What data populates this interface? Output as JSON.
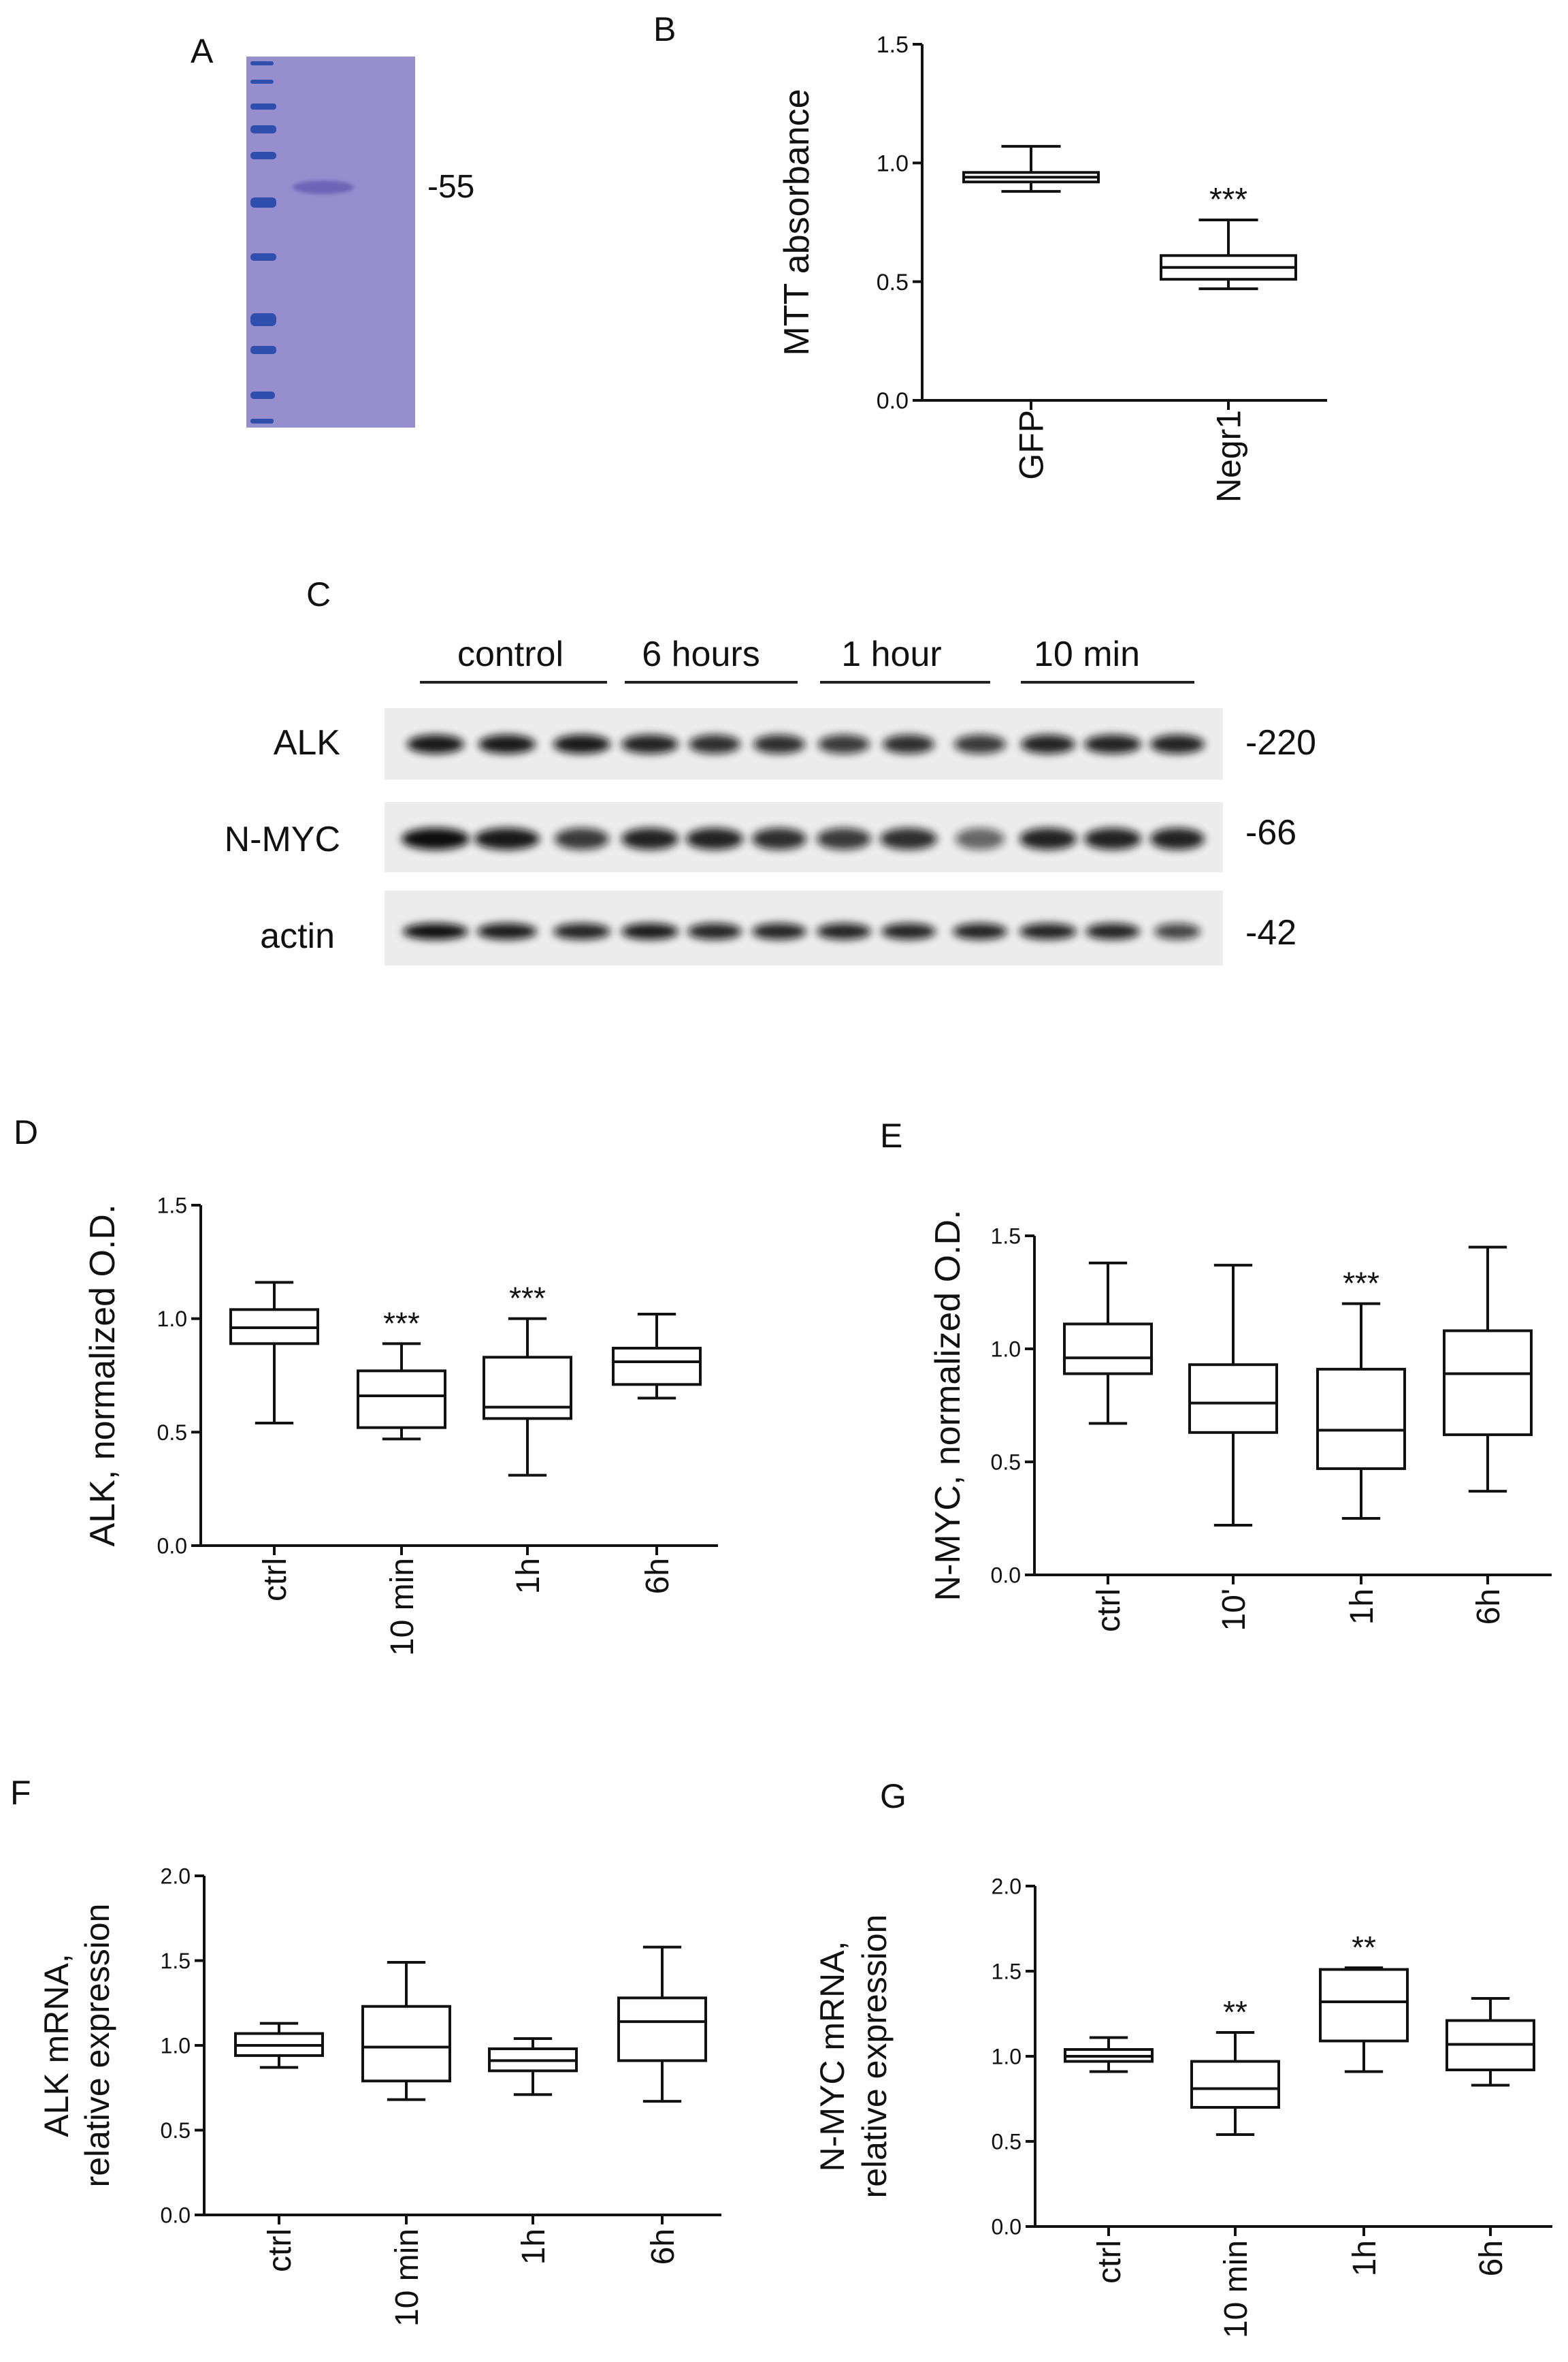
{
  "panel_letters": {
    "A": "A",
    "B": "B",
    "C": "C",
    "D": "D",
    "E": "E",
    "F": "F",
    "G": "G"
  },
  "panelA": {
    "size_label": "-55",
    "colors": {
      "gel": "#8f87c9",
      "marker": "#2e4fae",
      "band": "#6e63b7"
    }
  },
  "panelC": {
    "groups": [
      "control",
      "6 hours",
      "1 hour",
      "10 min"
    ],
    "blots": [
      {
        "name": "ALK",
        "size": "-220"
      },
      {
        "name": "N-MYC",
        "size": "-66"
      },
      {
        "name": "actin",
        "size": "-42"
      }
    ]
  },
  "chart_data": [
    {
      "id": "B",
      "type": "box",
      "ylabel": "MTT absorbance",
      "categories": [
        "GFP",
        "Negr1"
      ],
      "ylim": [
        0,
        1.5
      ],
      "yticks": [
        0.0,
        0.5,
        1.0,
        1.5
      ],
      "ytick_labels": [
        "0.0",
        "0.5",
        "1.0",
        "1.5"
      ],
      "boxes": [
        {
          "min": 0.88,
          "q1": 0.92,
          "median": 0.94,
          "q3": 0.96,
          "max": 1.07,
          "sig": ""
        },
        {
          "min": 0.47,
          "q1": 0.51,
          "median": 0.56,
          "q3": 0.61,
          "max": 0.76,
          "sig": "***"
        }
      ]
    },
    {
      "id": "D",
      "type": "box",
      "ylabel": "ALK, normalized O.D.",
      "categories": [
        "ctrl",
        "10 min",
        "1h",
        "6h"
      ],
      "ylim": [
        0,
        1.5
      ],
      "yticks": [
        0.0,
        0.5,
        1.0,
        1.5
      ],
      "ytick_labels": [
        "0.0",
        "0.5",
        "1.0",
        "1.5"
      ],
      "boxes": [
        {
          "min": 0.54,
          "q1": 0.89,
          "median": 0.96,
          "q3": 1.04,
          "max": 1.16,
          "sig": ""
        },
        {
          "min": 0.47,
          "q1": 0.52,
          "median": 0.66,
          "q3": 0.77,
          "max": 0.89,
          "sig": "***"
        },
        {
          "min": 0.31,
          "q1": 0.56,
          "median": 0.61,
          "q3": 0.83,
          "max": 1.0,
          "sig": "***"
        },
        {
          "min": 0.65,
          "q1": 0.71,
          "median": 0.81,
          "q3": 0.87,
          "max": 1.02,
          "sig": ""
        }
      ]
    },
    {
      "id": "E",
      "type": "box",
      "ylabel": "N-MYC, normalized O.D.",
      "categories": [
        "ctrl",
        "10'",
        "1h",
        "6h"
      ],
      "ylim": [
        0,
        1.5
      ],
      "yticks": [
        0.0,
        0.5,
        1.0,
        1.5
      ],
      "ytick_labels": [
        "0.0",
        "0.5",
        "1.0",
        "1.5"
      ],
      "boxes": [
        {
          "min": 0.67,
          "q1": 0.89,
          "median": 0.96,
          "q3": 1.11,
          "max": 1.38,
          "sig": ""
        },
        {
          "min": 0.22,
          "q1": 0.63,
          "median": 0.76,
          "q3": 0.93,
          "max": 1.37,
          "sig": ""
        },
        {
          "min": 0.25,
          "q1": 0.47,
          "median": 0.64,
          "q3": 0.91,
          "max": 1.2,
          "sig": "***"
        },
        {
          "min": 0.37,
          "q1": 0.62,
          "median": 0.89,
          "q3": 1.08,
          "max": 1.45,
          "sig": ""
        }
      ]
    },
    {
      "id": "F",
      "type": "box",
      "ylabel": "ALK mRNA,",
      "ylabel2": "relative expression",
      "categories": [
        "ctrl",
        "10 min",
        "1h",
        "6h"
      ],
      "ylim": [
        0,
        2.0
      ],
      "yticks": [
        0.0,
        0.5,
        1.0,
        1.5,
        2.0
      ],
      "ytick_labels": [
        "0.0",
        "0.5",
        "1.0",
        "1.5",
        "2.0"
      ],
      "boxes": [
        {
          "min": 0.87,
          "q1": 0.94,
          "median": 1.0,
          "q3": 1.07,
          "max": 1.13,
          "sig": ""
        },
        {
          "min": 0.68,
          "q1": 0.79,
          "median": 0.99,
          "q3": 1.23,
          "max": 1.49,
          "sig": ""
        },
        {
          "min": 0.71,
          "q1": 0.85,
          "median": 0.91,
          "q3": 0.98,
          "max": 1.04,
          "sig": ""
        },
        {
          "min": 0.67,
          "q1": 0.91,
          "median": 1.14,
          "q3": 1.28,
          "max": 1.58,
          "sig": ""
        }
      ]
    },
    {
      "id": "G",
      "type": "box",
      "ylabel": "N-MYC mRNA,",
      "ylabel2": "relative expression",
      "categories": [
        "ctrl",
        "10 min",
        "1h",
        "6h"
      ],
      "ylim": [
        0,
        2.0
      ],
      "yticks": [
        0.0,
        0.5,
        1.0,
        1.5,
        2.0
      ],
      "ytick_labels": [
        "0.0",
        "0.5",
        "1.0",
        "1.5",
        "2.0"
      ],
      "boxes": [
        {
          "min": 0.91,
          "q1": 0.97,
          "median": 1.0,
          "q3": 1.04,
          "max": 1.11,
          "sig": ""
        },
        {
          "min": 0.54,
          "q1": 0.7,
          "median": 0.81,
          "q3": 0.97,
          "max": 1.14,
          "sig": "**"
        },
        {
          "min": 0.91,
          "q1": 1.09,
          "median": 1.32,
          "q3": 1.51,
          "max": 1.52,
          "sig": "**"
        },
        {
          "min": 0.83,
          "q1": 0.92,
          "median": 1.07,
          "q3": 1.21,
          "max": 1.34,
          "sig": ""
        }
      ]
    }
  ]
}
